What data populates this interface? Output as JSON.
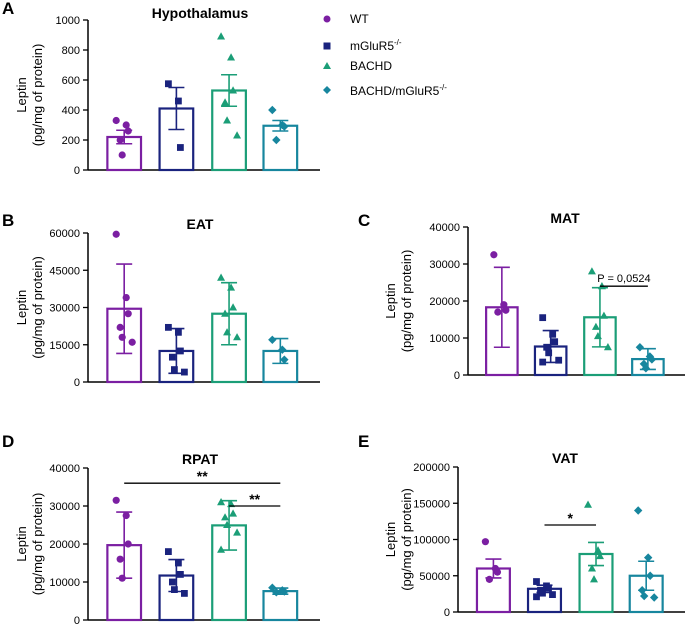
{
  "legend": [
    {
      "name": "WT",
      "color": "#7b1fa2",
      "marker": "circle"
    },
    {
      "name": "mGluR5",
      "sup": "-/-",
      "color": "#1a237e",
      "marker": "square"
    },
    {
      "name": "BACHD",
      "color": "#1b9e77",
      "marker": "triangle"
    },
    {
      "name": "BACHD/mGluR5",
      "sup": "-/-",
      "color": "#17869e",
      "marker": "diamond"
    }
  ],
  "chart_data": [
    {
      "letter": "A",
      "type": "bar",
      "title": "Hypothalamus",
      "ylabel1": "Leptin",
      "ylabel2": "(pg/mg of protein)",
      "ylim": [
        0,
        1000
      ],
      "ticks": [
        0,
        200,
        400,
        600,
        800,
        1000
      ],
      "tick_labels": [
        "0",
        "200",
        "400",
        "600",
        "800",
        "1000"
      ],
      "groups": [
        "WT",
        "mGluR5-/-",
        "BACHD",
        "BACHD/mGluR5-/-"
      ],
      "values": [
        220,
        410,
        530,
        295
      ],
      "err": [
        45,
        140,
        105,
        35
      ],
      "points": [
        [
          330,
          300,
          260,
          200,
          100
        ],
        [
          575,
          460,
          150
        ],
        [
          890,
          750,
          530,
          450,
          330,
          230
        ],
        [
          400,
          300,
          290,
          200
        ]
      ],
      "annotations": []
    },
    {
      "letter": "B",
      "type": "bar",
      "title": "EAT",
      "ylabel1": "Leptin",
      "ylabel2": "(pg/mg of protein)",
      "ylim": [
        0,
        60000
      ],
      "ticks": [
        0,
        15000,
        30000,
        45000,
        60000
      ],
      "tick_labels": [
        "0",
        "15000",
        "30000",
        "45000",
        "60000"
      ],
      "groups": [
        "WT",
        "mGluR5-/-",
        "BACHD",
        "BACHD/mGluR5-/-"
      ],
      "values": [
        29500,
        12500,
        27500,
        12500
      ],
      "err": [
        18000,
        9000,
        12500,
        5000
      ],
      "points": [
        [
          59500,
          34000,
          27500,
          22000,
          18000,
          16000
        ],
        [
          22000,
          20000,
          12500,
          10000,
          5000,
          4000
        ],
        [
          42000,
          38000,
          30000,
          27500,
          20000,
          18000
        ],
        [
          17000,
          13000,
          9000
        ]
      ],
      "annotations": []
    },
    {
      "letter": "C",
      "type": "bar",
      "title": "MAT",
      "ylabel1": "Leptin",
      "ylabel2": "(pg/mg of protein)",
      "ylim": [
        0,
        40000
      ],
      "ticks": [
        0,
        10000,
        20000,
        30000,
        40000
      ],
      "tick_labels": [
        "0",
        "10000",
        "20000",
        "30000",
        "40000"
      ],
      "groups": [
        "WT",
        "mGluR5-/-",
        "BACHD",
        "BACHD/mGluR5-/-"
      ],
      "values": [
        18300,
        7700,
        15600,
        4300
      ],
      "err": [
        10800,
        4300,
        8000,
        2800
      ],
      "points": [
        [
          32500,
          19000,
          17500,
          17000
        ],
        [
          15500,
          11000,
          9000,
          7500,
          6000,
          4000,
          3500
        ],
        [
          28000,
          24000,
          16000,
          13000,
          10500,
          7500
        ],
        [
          7500,
          5000,
          4200,
          3000,
          1800
        ]
      ],
      "annotations": [
        {
          "type": "bracket",
          "from": 2,
          "to": 3,
          "y": 24000,
          "label": "P = 0,0524",
          "style": "pval"
        }
      ]
    },
    {
      "letter": "D",
      "type": "bar",
      "title": "RPAT",
      "ylabel1": "Leptin",
      "ylabel2": "(pg/mg of protein)",
      "ylim": [
        0,
        40000
      ],
      "ticks": [
        0,
        10000,
        20000,
        30000,
        40000
      ],
      "tick_labels": [
        "0",
        "10000",
        "20000",
        "30000",
        "40000"
      ],
      "groups": [
        "WT",
        "mGluR5-/-",
        "BACHD",
        "BACHD/mGluR5-/-"
      ],
      "values": [
        19700,
        11700,
        24900,
        7600
      ],
      "err": [
        8700,
        4200,
        6500,
        800
      ],
      "points": [
        [
          31500,
          27500,
          20000,
          16000,
          11000
        ],
        [
          18000,
          15000,
          12000,
          10000,
          8000,
          7000
        ],
        [
          31000,
          30500,
          28000,
          27000,
          25000,
          23000,
          18500
        ],
        [
          8500,
          7800,
          7500,
          7300
        ]
      ],
      "annotations": [
        {
          "type": "bracket",
          "from": 0,
          "to": 3,
          "y": 36000,
          "label": "**",
          "style": "sig"
        },
        {
          "type": "bracket",
          "from": 2,
          "to": 3,
          "y": 30000,
          "label": "**",
          "style": "sig"
        }
      ]
    },
    {
      "letter": "E",
      "type": "bar",
      "title": "VAT",
      "ylabel1": "Leptin",
      "ylabel2": "(pg/mg of protein)",
      "ylim": [
        0,
        200000
      ],
      "ticks": [
        0,
        50000,
        100000,
        150000,
        200000
      ],
      "tick_labels": [
        "0",
        "50000",
        "100000",
        "150000",
        "200000"
      ],
      "groups": [
        "WT",
        "mGluR5-/-",
        "BACHD",
        "BACHD/mGluR5-/-"
      ],
      "values": [
        60000,
        32000,
        80000,
        50000
      ],
      "err": [
        13000,
        5000,
        16000,
        20000
      ],
      "points": [
        [
          97000,
          60000,
          55000,
          45000
        ],
        [
          42000,
          36000,
          33000,
          30000,
          26000,
          24000,
          21000
        ],
        [
          148000,
          85000,
          77000,
          60000,
          45000
        ],
        [
          140000,
          75000,
          50000,
          30000,
          22000,
          20000
        ]
      ],
      "annotations": [
        {
          "type": "bracket",
          "from": 1,
          "to": 2,
          "y": 120000,
          "label": "*",
          "style": "sig"
        }
      ]
    }
  ]
}
